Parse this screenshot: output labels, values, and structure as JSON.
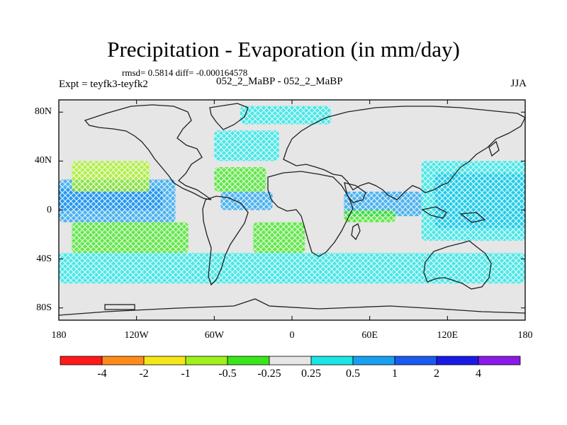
{
  "title": "Precipitation - Evaporation (in mm/day)",
  "stats": "rmsd= 0.5814 diff= -0.000164578",
  "expt": "Expt = teyfk3-teyfk2",
  "expt_label": "052_2_MaBP - 052_2_MaBP",
  "season": "JJA",
  "lat_labels": [
    {
      "lat": 80,
      "text": "80N"
    },
    {
      "lat": 40,
      "text": "40N"
    },
    {
      "lat": 0,
      "text": "0"
    },
    {
      "lat": -40,
      "text": "40S"
    },
    {
      "lat": -80,
      "text": "80S"
    }
  ],
  "lon_labels": [
    {
      "lon": -180,
      "text": "180"
    },
    {
      "lon": -120,
      "text": "120W"
    },
    {
      "lon": -60,
      "text": "60W"
    },
    {
      "lon": 0,
      "text": "0"
    },
    {
      "lon": 60,
      "text": "60E"
    },
    {
      "lon": 120,
      "text": "120E"
    },
    {
      "lon": 180,
      "text": "180"
    }
  ],
  "colorbar": {
    "colors": [
      "#ff1a1a",
      "#ff8c1a",
      "#f5e61a",
      "#a0f01a",
      "#3ae61a",
      "#e6e6e6",
      "#1ae6e6",
      "#1aa0f0",
      "#1a5af0",
      "#1a1ae6",
      "#8c1ae6"
    ],
    "labels": [
      "-4",
      "-2",
      "-1",
      "-0.5",
      "-0.25",
      "0.25",
      "0.5",
      "1",
      "2",
      "4"
    ]
  },
  "map_colors": {
    "background": "#e6e6e6",
    "coast": "#202020"
  },
  "features": [
    {
      "name": "pacific-itcz",
      "lon": [
        -180,
        -100
      ],
      "lat": [
        0,
        18
      ],
      "color": "#1a5af0"
    },
    {
      "name": "pacific-itcz-edge",
      "lon": [
        -180,
        -90
      ],
      "lat": [
        -10,
        25
      ],
      "color": "#1aa0f0"
    },
    {
      "name": "west-pacific-warm-pool",
      "lon": [
        110,
        180
      ],
      "lat": [
        -15,
        30
      ],
      "color": "#1a5af0"
    },
    {
      "name": "west-pacific-outer",
      "lon": [
        100,
        180
      ],
      "lat": [
        -25,
        40
      ],
      "color": "#1ae6e6"
    },
    {
      "name": "indian-ocean-band",
      "lon": [
        40,
        100
      ],
      "lat": [
        -5,
        15
      ],
      "color": "#1aa0f0"
    },
    {
      "name": "atlantic-itcz",
      "lon": [
        -55,
        -15
      ],
      "lat": [
        0,
        15
      ],
      "color": "#1aa0f0"
    },
    {
      "name": "south-indian-dry",
      "lon": [
        40,
        80
      ],
      "lat": [
        -10,
        0
      ],
      "color": "#3ae61a"
    },
    {
      "name": "southern-storm-track",
      "lon": [
        -180,
        180
      ],
      "lat": [
        -60,
        -35
      ],
      "color": "#1ae6e6"
    },
    {
      "name": "north-pacific-dry",
      "lon": [
        -170,
        -110
      ],
      "lat": [
        15,
        40
      ],
      "color": "#a0f01a"
    },
    {
      "name": "subtropical-atlantic-dry",
      "lon": [
        -60,
        -20
      ],
      "lat": [
        15,
        35
      ],
      "color": "#3ae61a"
    },
    {
      "name": "south-pacific-dry",
      "lon": [
        -170,
        -80
      ],
      "lat": [
        -35,
        -10
      ],
      "color": "#3ae61a"
    },
    {
      "name": "south-atlantic-dry",
      "lon": [
        -30,
        10
      ],
      "lat": [
        -35,
        -10
      ],
      "color": "#3ae61a"
    },
    {
      "name": "north-atlantic-wet",
      "lon": [
        -60,
        -10
      ],
      "lat": [
        40,
        65
      ],
      "color": "#1ae6e6"
    },
    {
      "name": "arctic-scattered",
      "lon": [
        -40,
        30
      ],
      "lat": [
        70,
        85
      ],
      "color": "#1ae6e6"
    }
  ]
}
